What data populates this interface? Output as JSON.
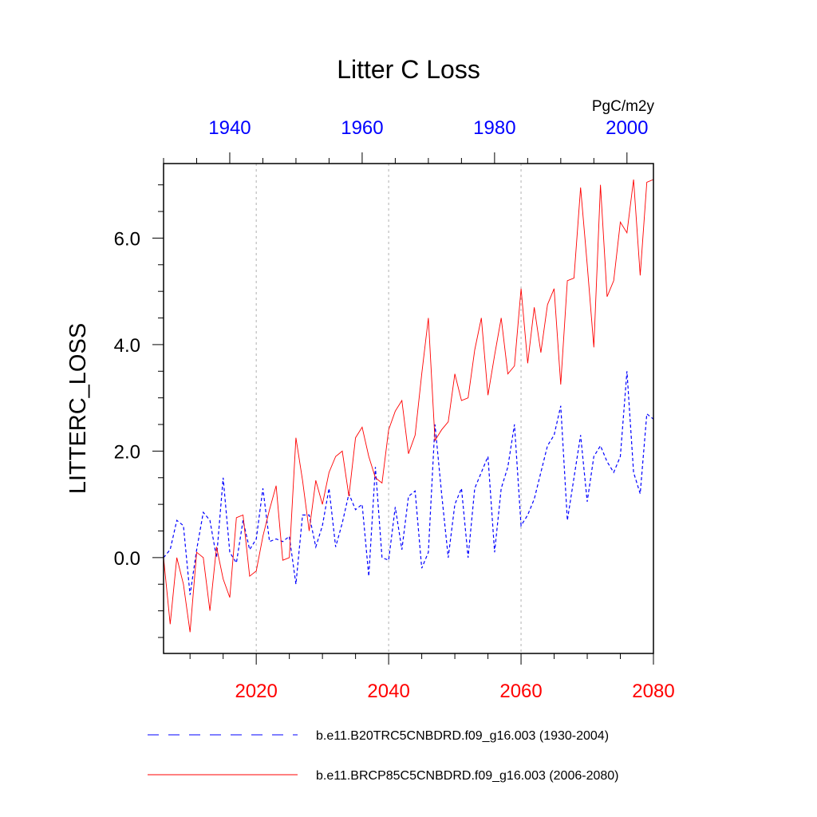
{
  "chart_data": {
    "type": "line",
    "title": "Litter C Loss",
    "ylabel": "LITTERC_LOSS",
    "units": "PgC/m2y",
    "ylim": [
      -1.8,
      7.4
    ],
    "yticks": [
      "0.0",
      "2.0",
      "4.0",
      "6.0"
    ],
    "ytick_values": [
      0,
      2,
      4,
      6
    ],
    "grid": "vertical dotted at bottom-axis major ticks",
    "bottom_axis": {
      "color": "#ff0000",
      "xlim": [
        2006,
        2080
      ],
      "ticks": [
        "2020",
        "2040",
        "2060",
        "2080"
      ],
      "tick_values": [
        2020,
        2040,
        2060,
        2080
      ]
    },
    "top_axis": {
      "color": "#0000ff",
      "xlim": [
        1930,
        2004
      ],
      "ticks": [
        "1940",
        "1960",
        "1980",
        "2000"
      ],
      "tick_values": [
        1940,
        1960,
        1980,
        2000
      ]
    },
    "legend_placement": "bottom",
    "series": [
      {
        "name": "b.e11.B20TRC5CNBDRD.f09_g16.003 (1930-2004)",
        "color": "#0000ff",
        "dash": "dashed",
        "axis": "top",
        "x_start": 1930,
        "values": [
          0.0,
          0.15,
          0.7,
          0.6,
          -0.7,
          0.15,
          0.85,
          0.7,
          0.0,
          1.5,
          0.1,
          -0.1,
          0.7,
          0.15,
          0.35,
          1.3,
          0.3,
          0.35,
          0.3,
          0.4,
          -0.5,
          0.8,
          0.8,
          0.2,
          0.6,
          1.3,
          0.2,
          0.65,
          1.2,
          0.9,
          1.0,
          -0.35,
          1.7,
          0.0,
          -0.05,
          0.95,
          0.15,
          1.15,
          1.25,
          -0.2,
          0.1,
          2.5,
          1.2,
          0.0,
          1.0,
          1.3,
          0.0,
          1.3,
          1.6,
          1.9,
          0.1,
          1.3,
          1.7,
          2.5,
          0.6,
          0.8,
          1.1,
          1.6,
          2.1,
          2.3,
          2.85,
          0.7,
          1.5,
          2.3,
          1.05,
          1.9,
          2.1,
          1.8,
          1.6,
          1.9,
          3.5,
          1.6,
          1.2,
          2.7,
          2.6
        ]
      },
      {
        "name": "b.e11.BRCP85C5CNBDRD.f09_g16.003 (2006-2080)",
        "color": "#ff0000",
        "dash": "solid",
        "axis": "bottom",
        "x_start": 2006,
        "values": [
          0.0,
          -1.25,
          0.0,
          -0.5,
          -1.4,
          0.1,
          0.0,
          -1.0,
          0.2,
          -0.4,
          -0.75,
          0.75,
          0.8,
          -0.35,
          -0.25,
          0.4,
          0.9,
          1.35,
          -0.05,
          0.0,
          2.25,
          1.45,
          0.5,
          1.45,
          1.0,
          1.6,
          1.9,
          2.0,
          1.15,
          2.25,
          2.45,
          1.9,
          1.5,
          1.4,
          2.4,
          2.75,
          2.95,
          1.95,
          2.3,
          3.45,
          4.5,
          2.2,
          2.4,
          2.55,
          3.45,
          2.95,
          3.0,
          3.9,
          4.5,
          3.05,
          3.8,
          4.5,
          3.45,
          3.6,
          5.05,
          3.65,
          4.7,
          3.85,
          4.75,
          5.05,
          3.25,
          5.2,
          5.25,
          6.95,
          5.5,
          3.95,
          7.0,
          4.9,
          5.2,
          6.3,
          6.1,
          7.1,
          5.3,
          7.05,
          7.1
        ]
      }
    ]
  }
}
